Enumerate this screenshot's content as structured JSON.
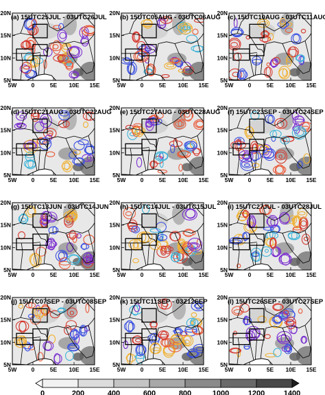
{
  "panels": [
    {
      "label": "(a) 15UTC25JUL - 03UTC26JUL"
    },
    {
      "label": "(b) 15UTC05AUG - 03UTC06AUG"
    },
    {
      "label": "(c) 15UTC10AUG - 03UTC11AUG"
    },
    {
      "label": "(d) 15UTC21AUG - 03UTC22AUG"
    },
    {
      "label": "(e) 15UTC27AUG - 03UTC28AUG"
    },
    {
      "label": "(f) 15UTC23SEP - 03UTC24SEP"
    },
    {
      "label": "(g) 15UTC13JUN - 03UTC14JUN"
    },
    {
      "label": "(h) 15UTC14JUL - 03UTC15JUL"
    },
    {
      "label": "(i) 15UTC27JUL - 03UTC28JUL"
    },
    {
      "label": "(j) 15UTC07SEP - 03UTC08SEP"
    },
    {
      "label": "(k) 15UTC11SEP - 03Z12SEP"
    },
    {
      "label": "(l) 15UTC26SEP - 03UTC27SEP"
    }
  ],
  "lon_ticks": [
    "5W",
    "0",
    "5E",
    "10E",
    "15E"
  ],
  "lat_ticks": [
    "5N",
    "10N",
    "15N",
    "20N"
  ],
  "lon_range": [
    -5,
    15
  ],
  "lat_range": [
    5,
    20
  ],
  "colorbar": {
    "ticks": [
      "0",
      "200",
      "400",
      "600",
      "800",
      "1000",
      "1200",
      "1400"
    ],
    "colors": [
      "#ffffff",
      "#f2f2f2",
      "#dcdcdc",
      "#c4c4c4",
      "#a8a8a8",
      "#8a8a8a",
      "#6a6a6a",
      "#484848",
      "#1e1e1e"
    ]
  },
  "contour_colors": [
    "#7b2fd0",
    "#3a4fe0",
    "#3fb4d8",
    "#f0b030",
    "#e85a3a",
    "#d43a30"
  ]
}
